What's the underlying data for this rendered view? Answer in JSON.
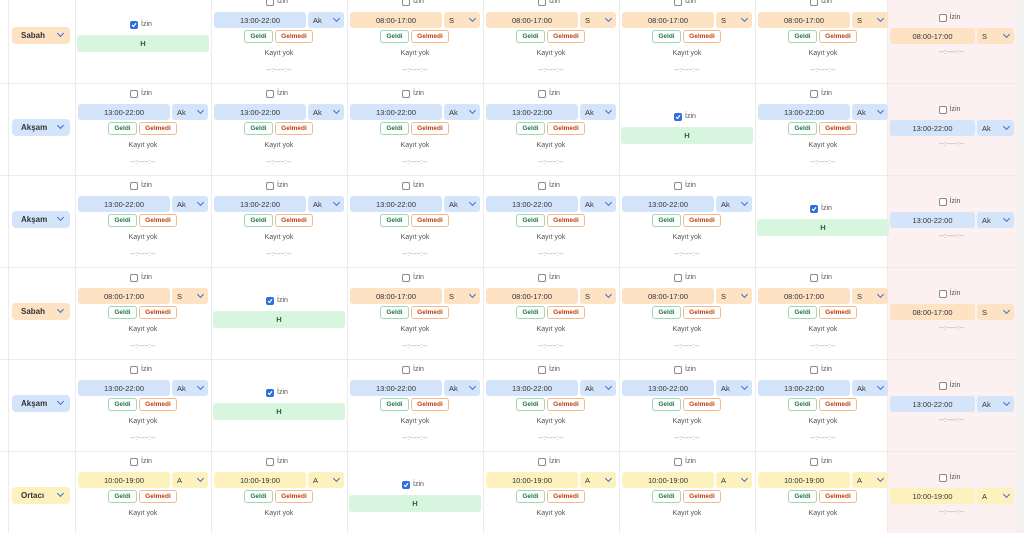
{
  "rows": [
    {
      "shift": {
        "label": "Sabah",
        "color": "#fde2c4"
      },
      "cells": [
        {
          "izin": "İzin",
          "checked": true,
          "mark": "H"
        },
        {
          "izin": "İzin",
          "checked": false,
          "time": "13:00-22:00",
          "code": "Ak",
          "color": "#d4e5fb",
          "geldi": "Geldi",
          "gelmedi": "Gelmedi",
          "status": "Kayıt yok",
          "span": "--:-----:--"
        },
        {
          "izin": "İzin",
          "checked": false,
          "time": "08:00-17:00",
          "code": "S",
          "color": "#fde2c4",
          "geldi": "Geldi",
          "gelmedi": "Gelmedi",
          "status": "Kayıt yok",
          "span": "--:-----:--"
        },
        {
          "izin": "İzin",
          "checked": false,
          "time": "08:00-17:00",
          "code": "S",
          "color": "#fde2c4",
          "geldi": "Geldi",
          "gelmedi": "Gelmedi",
          "status": "Kayıt yok",
          "span": "--:-----:--"
        },
        {
          "izin": "İzin",
          "checked": false,
          "time": "08:00-17:00",
          "code": "S",
          "color": "#fde2c4",
          "geldi": "Geldi",
          "gelmedi": "Gelmedi",
          "status": "Kayıt yok",
          "span": "--:-----:--"
        },
        {
          "izin": "İzin",
          "checked": false,
          "time": "08:00-17:00",
          "code": "S",
          "color": "#fde2c4",
          "geldi": "Geldi",
          "gelmedi": "Gelmedi",
          "status": "Kayıt yok",
          "span": "--:-----:--"
        }
      ],
      "last": {
        "izin": "İzin",
        "time": "08:00-17:00",
        "code": "S",
        "color": "#fde2c4",
        "span": "--:-----:--"
      }
    },
    {
      "shift": {
        "label": "Akşam",
        "color": "#d4e5fb"
      },
      "cells": [
        {
          "izin": "İzin",
          "checked": false,
          "time": "13:00-22:00",
          "code": "Ak",
          "color": "#d4e5fb",
          "geldi": "Geldi",
          "gelmedi": "Gelmedi",
          "status": "Kayıt yok",
          "span": "--:-----:--"
        },
        {
          "izin": "İzin",
          "checked": false,
          "time": "13:00-22:00",
          "code": "Ak",
          "color": "#d4e5fb",
          "geldi": "Geldi",
          "gelmedi": "Gelmedi",
          "status": "Kayıt yok",
          "span": "--:-----:--"
        },
        {
          "izin": "İzin",
          "checked": false,
          "time": "13:00-22:00",
          "code": "Ak",
          "color": "#d4e5fb",
          "geldi": "Geldi",
          "gelmedi": "Gelmedi",
          "status": "Kayıt yok",
          "span": "--:-----:--"
        },
        {
          "izin": "İzin",
          "checked": false,
          "time": "13:00-22:00",
          "code": "Ak",
          "color": "#d4e5fb",
          "geldi": "Geldi",
          "gelmedi": "Gelmedi",
          "status": "Kayıt yok",
          "span": "--:-----:--"
        },
        {
          "izin": "İzin",
          "checked": true,
          "mark": "H"
        },
        {
          "izin": "İzin",
          "checked": false,
          "time": "13:00-22:00",
          "code": "Ak",
          "color": "#d4e5fb",
          "geldi": "Geldi",
          "gelmedi": "Gelmedi",
          "status": "Kayıt yok",
          "span": "--:-----:--"
        }
      ],
      "last": {
        "izin": "İzin",
        "time": "13:00-22:00",
        "code": "Ak",
        "color": "#d4e5fb",
        "span": "--:-----:--"
      }
    },
    {
      "shift": {
        "label": "Akşam",
        "color": "#d4e5fb"
      },
      "cells": [
        {
          "izin": "İzin",
          "checked": false,
          "time": "13:00-22:00",
          "code": "Ak",
          "color": "#d4e5fb",
          "geldi": "Geldi",
          "gelmedi": "Gelmedi",
          "status": "Kayıt yok",
          "span": "--:-----:--"
        },
        {
          "izin": "İzin",
          "checked": false,
          "time": "13:00-22:00",
          "code": "Ak",
          "color": "#d4e5fb",
          "geldi": "Geldi",
          "gelmedi": "Gelmedi",
          "status": "Kayıt yok",
          "span": "--:-----:--"
        },
        {
          "izin": "İzin",
          "checked": false,
          "time": "13:00-22:00",
          "code": "Ak",
          "color": "#d4e5fb",
          "geldi": "Geldi",
          "gelmedi": "Gelmedi",
          "status": "Kayıt yok",
          "span": "--:-----:--"
        },
        {
          "izin": "İzin",
          "checked": false,
          "time": "13:00-22:00",
          "code": "Ak",
          "color": "#d4e5fb",
          "geldi": "Geldi",
          "gelmedi": "Gelmedi",
          "status": "Kayıt yok",
          "span": "--:-----:--"
        },
        {
          "izin": "İzin",
          "checked": false,
          "time": "13:00-22:00",
          "code": "Ak",
          "color": "#d4e5fb",
          "geldi": "Geldi",
          "gelmedi": "Gelmedi",
          "status": "Kayıt yok",
          "span": "--:-----:--"
        },
        {
          "izin": "İzin",
          "checked": true,
          "mark": "H"
        }
      ],
      "last": {
        "izin": "İzin",
        "time": "13:00-22:00",
        "code": "Ak",
        "color": "#d4e5fb",
        "span": "--:-----:--"
      }
    },
    {
      "shift": {
        "label": "Sabah",
        "color": "#fde2c4"
      },
      "cells": [
        {
          "izin": "İzin",
          "checked": false,
          "time": "08:00-17:00",
          "code": "S",
          "color": "#fde2c4",
          "geldi": "Geldi",
          "gelmedi": "Gelmedi",
          "status": "Kayıt yok",
          "span": "--:-----:--"
        },
        {
          "izin": "İzin",
          "checked": true,
          "mark": "H"
        },
        {
          "izin": "İzin",
          "checked": false,
          "time": "08:00-17:00",
          "code": "S",
          "color": "#fde2c4",
          "geldi": "Geldi",
          "gelmedi": "Gelmedi",
          "status": "Kayıt yok",
          "span": "--:-----:--"
        },
        {
          "izin": "İzin",
          "checked": false,
          "time": "08:00-17:00",
          "code": "S",
          "color": "#fde2c4",
          "geldi": "Geldi",
          "gelmedi": "Gelmedi",
          "status": "Kayıt yok",
          "span": "--:-----:--"
        },
        {
          "izin": "İzin",
          "checked": false,
          "time": "08:00-17:00",
          "code": "S",
          "color": "#fde2c4",
          "geldi": "Geldi",
          "gelmedi": "Gelmedi",
          "status": "Kayıt yok",
          "span": "--:-----:--"
        },
        {
          "izin": "İzin",
          "checked": false,
          "time": "08:00-17:00",
          "code": "S",
          "color": "#fde2c4",
          "geldi": "Geldi",
          "gelmedi": "Gelmedi",
          "status": "Kayıt yok",
          "span": "--:-----:--"
        }
      ],
      "last": {
        "izin": "İzin",
        "time": "08:00-17:00",
        "code": "S",
        "color": "#fde2c4",
        "span": "--:-----:--"
      }
    },
    {
      "shift": {
        "label": "Akşam",
        "color": "#d4e5fb"
      },
      "cells": [
        {
          "izin": "İzin",
          "checked": false,
          "time": "13:00-22:00",
          "code": "Ak",
          "color": "#d4e5fb",
          "geldi": "Geldi",
          "gelmedi": "Gelmedi",
          "status": "Kayıt yok",
          "span": "--:-----:--"
        },
        {
          "izin": "İzin",
          "checked": true,
          "mark": "H"
        },
        {
          "izin": "İzin",
          "checked": false,
          "time": "13:00-22:00",
          "code": "Ak",
          "color": "#d4e5fb",
          "geldi": "Geldi",
          "gelmedi": "Gelmedi",
          "status": "Kayıt yok",
          "span": "--:-----:--"
        },
        {
          "izin": "İzin",
          "checked": false,
          "time": "13:00-22:00",
          "code": "Ak",
          "color": "#d4e5fb",
          "geldi": "Geldi",
          "gelmedi": "Gelmedi",
          "status": "Kayıt yok",
          "span": "--:-----:--"
        },
        {
          "izin": "İzin",
          "checked": false,
          "time": "13:00-22:00",
          "code": "Ak",
          "color": "#d4e5fb",
          "geldi": "Geldi",
          "gelmedi": "Gelmedi",
          "status": "Kayıt yok",
          "span": "--:-----:--"
        },
        {
          "izin": "İzin",
          "checked": false,
          "time": "13:00-22:00",
          "code": "Ak",
          "color": "#d4e5fb",
          "geldi": "Geldi",
          "gelmedi": "Gelmedi",
          "status": "Kayıt yok",
          "span": "--:-----:--"
        }
      ],
      "last": {
        "izin": "İzin",
        "time": "13:00-22:00",
        "code": "Ak",
        "color": "#d4e5fb",
        "span": "--:-----:--"
      }
    },
    {
      "shift": {
        "label": "Ortacı",
        "color": "#fdf2bd"
      },
      "cells": [
        {
          "izin": "İzin",
          "checked": false,
          "time": "10:00-19:00",
          "code": "A",
          "color": "#fdf2bd",
          "geldi": "Geldi",
          "gelmedi": "Gelmedi",
          "status": "Kayıt yok"
        },
        {
          "izin": "İzin",
          "checked": false,
          "time": "10:00-19:00",
          "code": "A",
          "color": "#fdf2bd",
          "geldi": "Geldi",
          "gelmedi": "Gelmedi",
          "status": "Kayıt yok"
        },
        {
          "izin": "İzin",
          "checked": true,
          "mark": "H"
        },
        {
          "izin": "İzin",
          "checked": false,
          "time": "10:00-19:00",
          "code": "A",
          "color": "#fdf2bd",
          "geldi": "Geldi",
          "gelmedi": "Gelmedi",
          "status": "Kayıt yok"
        },
        {
          "izin": "İzin",
          "checked": false,
          "time": "10:00-19:00",
          "code": "A",
          "color": "#fdf2bd",
          "geldi": "Geldi",
          "gelmedi": "Gelmedi",
          "status": "Kayıt yok"
        },
        {
          "izin": "İzin",
          "checked": false,
          "time": "10:00-19:00",
          "code": "A",
          "color": "#fdf2bd",
          "geldi": "Geldi",
          "gelmedi": "Gelmedi",
          "status": "Kayıt yok"
        }
      ],
      "last": {
        "izin": "İzin",
        "time": "10:00-19:00",
        "code": "A",
        "color": "#fdf2bd",
        "span": "--:-----:--"
      }
    }
  ]
}
